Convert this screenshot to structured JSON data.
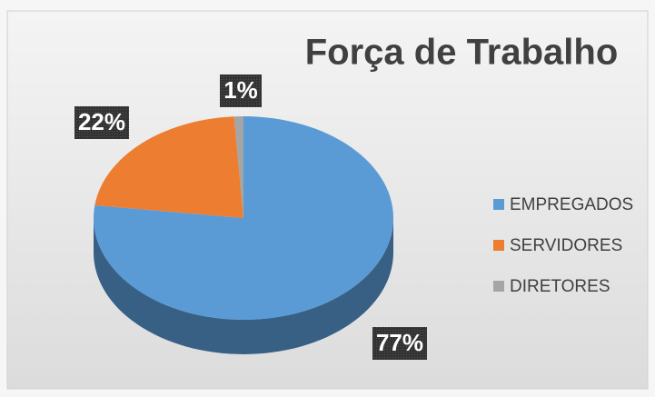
{
  "chart_data": {
    "type": "pie3d",
    "title": "Força de Trabalho",
    "categories": [
      "EMPREGADOS",
      "SERVIDORES",
      "DIRETORES"
    ],
    "values": [
      77,
      22,
      1
    ],
    "value_labels": [
      "77%",
      "22%",
      "1%"
    ],
    "colors": [
      "#5b9bd5",
      "#ed7d31",
      "#a5a5a5"
    ],
    "legend": "right"
  }
}
